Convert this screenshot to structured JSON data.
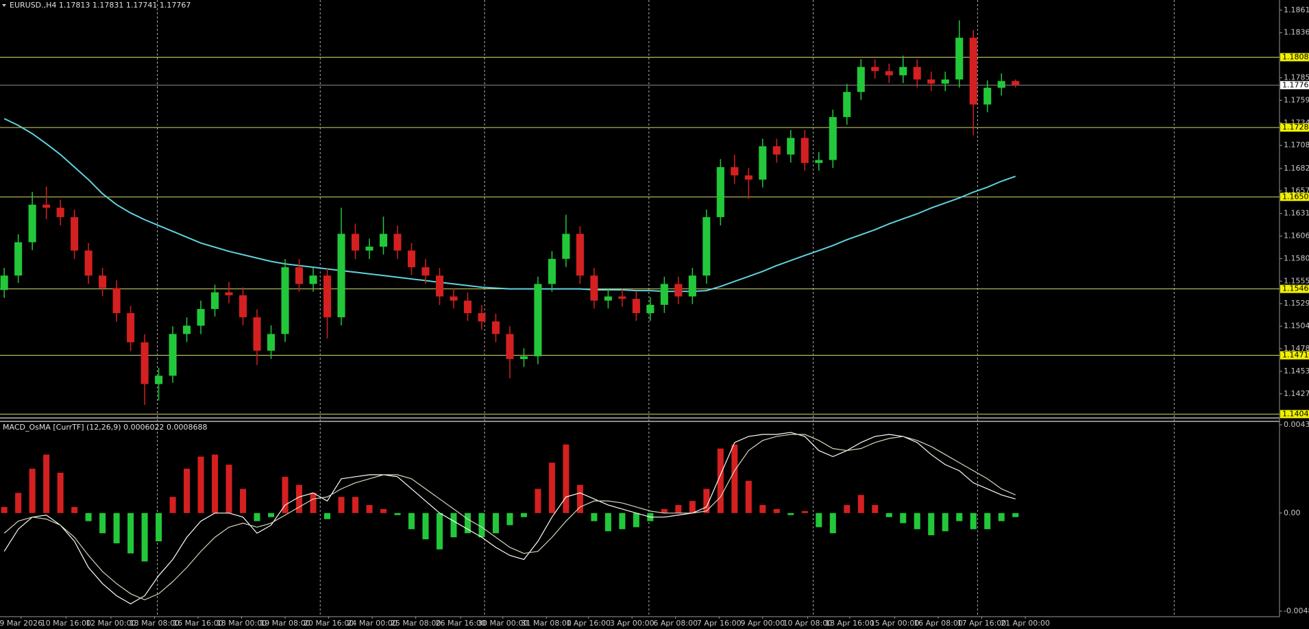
{
  "chart_data": [
    {
      "type": "candlestick",
      "title": "EURUSD.,H4 1.17813 1.17831 1.17741 1.17767",
      "up_color": "#22c83a",
      "down_color": "#d42020",
      "open": [
        1.1545,
        1.15613,
        1.1599,
        1.16415,
        1.1638,
        1.16274,
        1.15896,
        1.15613,
        1.15471,
        1.15188,
        1.14858,
        1.14386,
        1.1448,
        1.14952,
        1.15046,
        1.15235,
        1.15424,
        1.1539,
        1.15141,
        1.14763,
        1.14952,
        1.15707,
        1.15518,
        1.15613,
        1.15141,
        1.16085,
        1.15896,
        1.1594,
        1.16085,
        1.15896,
        1.15707,
        1.15613,
        1.15377,
        1.1533,
        1.15188,
        1.15094,
        1.14952,
        1.14669,
        1.147,
        1.15518,
        1.15802,
        1.16085,
        1.15613,
        1.1533,
        1.15377,
        1.1535,
        1.15188,
        1.15282,
        1.15518,
        1.15377,
        1.15613,
        1.16274,
        1.1684,
        1.16746,
        1.16698,
        1.17076,
        1.16982,
        1.1717,
        1.16887,
        1.1692,
        1.17406,
        1.1769,
        1.17973,
        1.17926,
        1.17878,
        1.17973,
        1.17831,
        1.17784,
        1.17831,
        1.18303,
        1.17548,
        1.17737,
        1.17813
      ],
      "high": [
        1.157,
        1.1608,
        1.1656,
        1.1662,
        1.1647,
        1.1636,
        1.1598,
        1.157,
        1.1556,
        1.1527,
        1.1495,
        1.1457,
        1.1504,
        1.1514,
        1.1533,
        1.1551,
        1.1554,
        1.1548,
        1.1523,
        1.1505,
        1.158,
        1.158,
        1.157,
        1.157,
        1.1638,
        1.162,
        1.1603,
        1.1628,
        1.1618,
        1.1598,
        1.158,
        1.157,
        1.1547,
        1.1542,
        1.1528,
        1.1518,
        1.1504,
        1.1479,
        1.156,
        1.1589,
        1.163,
        1.1617,
        1.157,
        1.1547,
        1.1546,
        1.1544,
        1.1537,
        1.156,
        1.156,
        1.157,
        1.1636,
        1.1693,
        1.1698,
        1.1683,
        1.1716,
        1.1716,
        1.1726,
        1.1726,
        1.1701,
        1.1749,
        1.1778,
        1.1806,
        1.1806,
        1.1801,
        1.181,
        1.1806,
        1.1792,
        1.1792,
        1.185,
        1.1839,
        1.1782,
        1.179,
        1.17831
      ],
      "low": [
        1.1536,
        1.1553,
        1.159,
        1.1625,
        1.1618,
        1.158,
        1.1552,
        1.1538,
        1.1509,
        1.1476,
        1.1415,
        1.142,
        1.144,
        1.1486,
        1.1495,
        1.1515,
        1.153,
        1.1505,
        1.146,
        1.1467,
        1.1486,
        1.1543,
        1.1543,
        1.149,
        1.1505,
        1.158,
        1.158,
        1.1585,
        1.158,
        1.1562,
        1.1552,
        1.1528,
        1.1524,
        1.151,
        1.15,
        1.1486,
        1.1445,
        1.1458,
        1.1461,
        1.1543,
        1.1571,
        1.1552,
        1.1524,
        1.1524,
        1.1526,
        1.151,
        1.151,
        1.1519,
        1.1529,
        1.1529,
        1.1552,
        1.1618,
        1.1665,
        1.1648,
        1.1661,
        1.1689,
        1.1689,
        1.168,
        1.168,
        1.1683,
        1.1732,
        1.176,
        1.1784,
        1.1779,
        1.1779,
        1.1774,
        1.177,
        1.177,
        1.1774,
        1.172,
        1.1746,
        1.1765,
        1.17741
      ],
      "close": [
        1.15613,
        1.1599,
        1.16415,
        1.1638,
        1.16274,
        1.15896,
        1.15613,
        1.15471,
        1.15188,
        1.14858,
        1.14386,
        1.1448,
        1.14952,
        1.15046,
        1.15235,
        1.15424,
        1.1539,
        1.15141,
        1.14763,
        1.14952,
        1.15707,
        1.15518,
        1.15613,
        1.15141,
        1.16085,
        1.15896,
        1.1594,
        1.16085,
        1.15896,
        1.15707,
        1.15613,
        1.15377,
        1.1533,
        1.15188,
        1.15094,
        1.14952,
        1.14669,
        1.147,
        1.15518,
        1.15802,
        1.16085,
        1.15613,
        1.1533,
        1.15377,
        1.1535,
        1.15188,
        1.15282,
        1.15518,
        1.15377,
        1.15613,
        1.16274,
        1.1684,
        1.16746,
        1.16698,
        1.17076,
        1.16982,
        1.1717,
        1.16887,
        1.1692,
        1.17406,
        1.1769,
        1.17973,
        1.17926,
        1.17878,
        1.17973,
        1.17831,
        1.17784,
        1.17831,
        1.18303,
        1.17548,
        1.17737,
        1.17813,
        1.17767
      ],
      "ma": {
        "color": "#5fd3e0",
        "values": [
          1.17388,
          1.17312,
          1.17218,
          1.17104,
          1.16982,
          1.1684,
          1.16698,
          1.16538,
          1.16415,
          1.16321,
          1.16245,
          1.16179,
          1.16113,
          1.16047,
          1.15981,
          1.15934,
          1.15887,
          1.15849,
          1.15811,
          1.15773,
          1.15745,
          1.15726,
          1.15707,
          1.15688,
          1.15669,
          1.15651,
          1.15632,
          1.15613,
          1.15594,
          1.15575,
          1.15556,
          1.15537,
          1.15518,
          1.155,
          1.15481,
          1.15471,
          1.15462,
          1.15462,
          1.15462,
          1.15462,
          1.15462,
          1.15462,
          1.15452,
          1.15452,
          1.15452,
          1.15443,
          1.15443,
          1.15434,
          1.15434,
          1.15434,
          1.15443,
          1.1549,
          1.15547,
          1.15603,
          1.1566,
          1.15726,
          1.15783,
          1.15841,
          1.15896,
          1.15953,
          1.16019,
          1.16075,
          1.16132,
          1.16198,
          1.16255,
          1.16311,
          1.16377,
          1.16434,
          1.16491,
          1.16557,
          1.16613,
          1.1668,
          1.16736
        ]
      },
      "levels": {
        "color": "#d8d86a",
        "values": [
          1.18083,
          1.17287,
          1.16503,
          1.15462,
          1.14711,
          1.14046
        ]
      },
      "price_line": 1.17767,
      "xlim": [
        -0.3,
        90.8
      ],
      "xgrid": [
        10.9,
        22.5,
        34.2,
        45.9,
        57.6,
        69.3,
        83.3
      ],
      "ylim": [
        1.1401,
        1.1873
      ],
      "yticks": [
        1.18615,
        {
          "value": 1.1836,
          "label": "1.18360"
        },
        {
          "value": 1.1785,
          "label": "1.17850"
        },
        1.17595,
        {
          "value": 1.1734,
          "label": "1.17340"
        },
        1.17085,
        1.16825,
        {
          "value": 1.1657,
          "label": "1.16570"
        },
        1.16315,
        {
          "value": 1.1606,
          "label": "1.16060"
        },
        1.15805,
        {
          "value": 1.1555,
          "label": "1.15550"
        },
        1.15295,
        {
          "value": 1.1504,
          "label": "1.15040"
        },
        1.14785,
        {
          "value": 1.1453,
          "label": "1.14530"
        },
        1.14275
      ]
    },
    {
      "type": "macd",
      "title": "MACD_OsMA [CurrTF] (12,26,9) 0.0006022 0.0008688",
      "histogram": {
        "up_color": "#d42020",
        "down_color": "#22c83a",
        "values": [
          0.0003,
          0.001,
          0.0022,
          0.0029,
          0.002,
          0.0003,
          -0.0004,
          -0.001,
          -0.0015,
          -0.002,
          -0.0024,
          -0.0014,
          0.0008,
          0.0022,
          0.0028,
          0.0029,
          0.0024,
          0.0012,
          -0.0004,
          -0.0002,
          0.0018,
          0.0014,
          0.001,
          -0.0003,
          0.0008,
          0.0008,
          0.0004,
          0.0002,
          -0.0001,
          -0.0008,
          -0.0013,
          -0.0018,
          -0.0012,
          -0.001,
          -0.0012,
          -0.001,
          -0.0006,
          -0.0002,
          0.0012,
          0.0025,
          0.0034,
          0.0014,
          -0.0004,
          -0.0009,
          -0.0008,
          -0.0007,
          -0.0004,
          0.0002,
          0.0004,
          0.0006,
          0.0012,
          0.0032,
          0.0034,
          0.0016,
          0.0004,
          0.0002,
          -0.0001,
          0.0001,
          -0.0007,
          -0.001,
          0.0004,
          0.0009,
          0.0004,
          -0.0002,
          -0.0005,
          -0.0008,
          -0.0011,
          -0.0009,
          -0.0004,
          -0.0008,
          -0.0008,
          -0.0004,
          -0.0002
        ]
      },
      "series": [
        {
          "color": "#ffffff",
          "values": [
            -0.0019,
            -0.0008,
            -0.0002,
            -0.0001,
            -0.0006,
            -0.0014,
            -0.0027,
            -0.0035,
            -0.0041,
            -0.0045,
            -0.0041,
            -0.0031,
            -0.0023,
            -0.0012,
            -0.0004,
            0,
            0,
            -0.0002,
            -0.001,
            -0.0006,
            0.0004,
            0.0008,
            0.001,
            0.0006,
            0.0017,
            0.0018,
            0.0019,
            0.0019,
            0.0018,
            0.0012,
            0.0006,
            0,
            -0.0004,
            -0.0008,
            -0.0012,
            -0.0017,
            -0.0021,
            -0.0023,
            -0.0014,
            -0.0002,
            0.0008,
            0.001,
            0.0007,
            0.0004,
            0.0002,
            0,
            -0.0002,
            -0.0002,
            -0.0001,
            0,
            0.0003,
            0.0019,
            0.0035,
            0.0038,
            0.0039,
            0.0039,
            0.004,
            0.0038,
            0.0031,
            0.0028,
            0.0031,
            0.0035,
            0.0038,
            0.0039,
            0.0038,
            0.0035,
            0.0029,
            0.0024,
            0.0021,
            0.0015,
            0.0012,
            0.0009,
            0.0007
          ]
        },
        {
          "color": "#d8d8c0",
          "values": [
            -0.001,
            -0.0004,
            -0.0002,
            -0.0003,
            -0.0006,
            -0.0012,
            -0.0021,
            -0.0029,
            -0.0035,
            -0.004,
            -0.0043,
            -0.004,
            -0.0034,
            -0.0027,
            -0.0019,
            -0.0012,
            -0.0007,
            -0.0005,
            -0.0007,
            -0.0005,
            -0.0001,
            0.0003,
            0.0007,
            0.0008,
            0.0012,
            0.0015,
            0.0017,
            0.0019,
            0.0019,
            0.0017,
            0.0012,
            0.0007,
            0.0002,
            -0.0003,
            -0.0007,
            -0.0012,
            -0.0017,
            -0.002,
            -0.0019,
            -0.0012,
            -0.0004,
            0.0003,
            0.0006,
            0.0006,
            0.0005,
            0.0003,
            0.0001,
            0,
            0,
            0,
            0.0001,
            0.0008,
            0.0021,
            0.0031,
            0.0036,
            0.0038,
            0.0039,
            0.0039,
            0.0036,
            0.0032,
            0.0031,
            0.0032,
            0.0035,
            0.0037,
            0.0038,
            0.0036,
            0.0033,
            0.0029,
            0.0025,
            0.0021,
            0.0017,
            0.0012,
            0.0009
          ]
        }
      ],
      "xlim": [
        -0.3,
        90.8
      ],
      "ylim": [
        -0.004865,
        0.004376
      ],
      "yticks": [
        0.004376,
        {
          "value": 0,
          "label": "0.00"
        },
        -0.004865
      ],
      "xticks": [
        {
          "value": 1.2,
          "label": "9 Mar 2026"
        },
        {
          "value": 4.4,
          "label": "10 Mar 16:00"
        },
        {
          "value": 7.6,
          "label": "12 Mar 00:00"
        },
        {
          "value": 10.7,
          "label": "13 Mar 08:00"
        },
        {
          "value": 13.8,
          "label": "16 Mar 16:00"
        },
        {
          "value": 16.9,
          "label": "18 Mar 00:00"
        },
        {
          "value": 20.0,
          "label": "19 Mar 08:00"
        },
        {
          "value": 23.1,
          "label": "20 Mar 16:00"
        },
        {
          "value": 26.2,
          "label": "24 Mar 00:00"
        },
        {
          "value": 29.3,
          "label": "25 Mar 08:00"
        },
        {
          "value": 32.5,
          "label": "26 Mar 16:00"
        },
        {
          "value": 35.5,
          "label": "30 Mar 00:00"
        },
        {
          "value": 38.6,
          "label": "31 Mar 08:00"
        },
        {
          "value": 41.6,
          "label": "1 Apr 16:00"
        },
        {
          "value": 44.7,
          "label": "3 Apr 00:00"
        },
        {
          "value": 47.8,
          "label": "6 Apr 08:00"
        },
        {
          "value": 50.9,
          "label": "7 Apr 16:00"
        },
        {
          "value": 54.0,
          "label": "9 Apr 00:00"
        },
        {
          "value": 57.2,
          "label": "10 Apr 08:00"
        },
        {
          "value": 60.2,
          "label": "13 Apr 16:00"
        },
        {
          "value": 63.4,
          "label": "15 Apr 00:00"
        },
        {
          "value": 66.5,
          "label": "16 Apr 08:00"
        },
        {
          "value": 69.6,
          "label": "17 Apr 16:00"
        },
        {
          "value": 72.7,
          "label": "21 Apr 00:00"
        }
      ]
    }
  ]
}
